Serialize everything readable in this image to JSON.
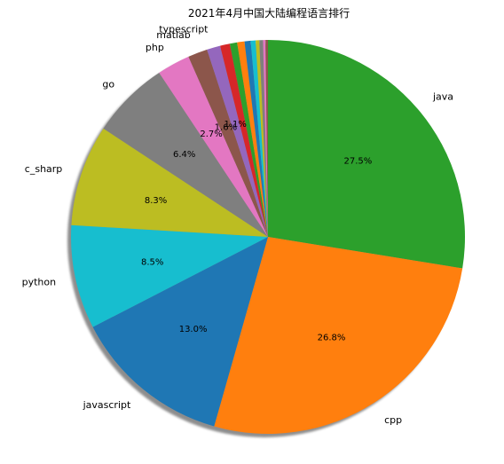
{
  "chart_data": {
    "type": "pie",
    "title": "2021年4月中国大陆编程语言排行",
    "start_angle_deg": 90,
    "direction": "clockwise",
    "shadow": true,
    "slices": [
      {
        "label": "java",
        "value": 27.5,
        "pct_label": "27.5%",
        "color": "#2ca02c"
      },
      {
        "label": "cpp",
        "value": 26.8,
        "pct_label": "26.8%",
        "color": "#ff7f0e"
      },
      {
        "label": "javascript",
        "value": 13.0,
        "pct_label": "13.0%",
        "color": "#1f77b4"
      },
      {
        "label": "python",
        "value": 8.5,
        "pct_label": "8.5%",
        "color": "#17becf"
      },
      {
        "label": "c_sharp",
        "value": 8.3,
        "pct_label": "8.3%",
        "color": "#bcbd22"
      },
      {
        "label": "go",
        "value": 6.4,
        "pct_label": "6.4%",
        "color": "#7f7f7f"
      },
      {
        "label": "php",
        "value": 2.7,
        "pct_label": "2.7%",
        "color": "#e377c2"
      },
      {
        "label": "matlab",
        "value": 1.6,
        "pct_label": "1.6%",
        "color": "#8c564b"
      },
      {
        "label": "typescript",
        "value": 1.1,
        "pct_label": "1.1%",
        "color": "#9467bd"
      },
      {
        "label": "",
        "value": 0.8,
        "pct_label": "",
        "color": "#d62728"
      },
      {
        "label": "",
        "value": 0.6,
        "pct_label": "",
        "color": "#2ca02c"
      },
      {
        "label": "",
        "value": 0.6,
        "pct_label": "",
        "color": "#ff7f0e"
      },
      {
        "label": "",
        "value": 0.5,
        "pct_label": "",
        "color": "#1f77b4"
      },
      {
        "label": "",
        "value": 0.4,
        "pct_label": "",
        "color": "#17becf"
      },
      {
        "label": "",
        "value": 0.3,
        "pct_label": "",
        "color": "#bcbd22"
      },
      {
        "label": "",
        "value": 0.3,
        "pct_label": "",
        "color": "#7f7f7f"
      },
      {
        "label": "",
        "value": 0.2,
        "pct_label": "",
        "color": "#e377c2"
      },
      {
        "label": "",
        "value": 0.2,
        "pct_label": "",
        "color": "#8c564b"
      }
    ]
  }
}
